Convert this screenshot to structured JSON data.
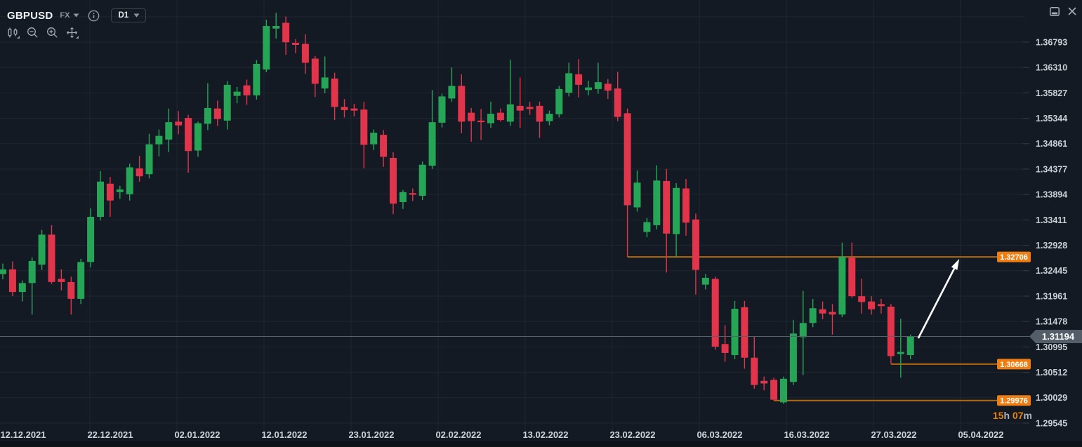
{
  "header": {
    "symbol": "GBPUSD",
    "market_badge": "FX",
    "timeframe": "D1"
  },
  "toolbar": {
    "icons": [
      "chart-style-candles",
      "zoom-out",
      "zoom-in",
      "pan-move"
    ]
  },
  "window_controls": {
    "icons": [
      "dock-panel",
      "close"
    ]
  },
  "chart_data": {
    "type": "candlestick",
    "symbol": "GBPUSD",
    "timeframe": "D1",
    "y_axis": {
      "max": 1.36793,
      "min": 1.29545,
      "step": 0.00483,
      "labels": [
        "1.36793",
        "1.36310",
        "1.35827",
        "1.35344",
        "1.34861",
        "1.34377",
        "1.33894",
        "1.33411",
        "1.32928",
        "1.32445",
        "1.31961",
        "1.31478",
        "1.30995",
        "1.30512",
        "1.30029",
        "1.29545"
      ]
    },
    "x_axis": {
      "labels": [
        "12.12.2021",
        "22.12.2021",
        "02.01.2022",
        "12.01.2022",
        "23.01.2022",
        "02.02.2022",
        "13.02.2022",
        "23.02.2022",
        "06.03.2022",
        "16.03.2022",
        "27.03.2022",
        "05.04.2022"
      ]
    },
    "series_ohlc": [
      [
        1.3238,
        1.3258,
        1.3228,
        1.3247
      ],
      [
        1.3247,
        1.3262,
        1.3196,
        1.3204
      ],
      [
        1.3204,
        1.3226,
        1.3186,
        1.3221
      ],
      [
        1.3221,
        1.327,
        1.3161,
        1.3263
      ],
      [
        1.3256,
        1.3322,
        1.3246,
        1.3313
      ],
      [
        1.3313,
        1.3331,
        1.3219,
        1.3223
      ],
      [
        1.3229,
        1.3247,
        1.3207,
        1.3223
      ],
      [
        1.3223,
        1.3233,
        1.3161,
        1.3191
      ],
      [
        1.3191,
        1.3267,
        1.3181,
        1.3261
      ],
      [
        1.3261,
        1.3363,
        1.3251,
        1.3347
      ],
      [
        1.3347,
        1.3434,
        1.334,
        1.3414
      ],
      [
        1.341,
        1.3423,
        1.3347,
        1.3378
      ],
      [
        1.3394,
        1.3406,
        1.3381,
        1.3399
      ],
      [
        1.339,
        1.3448,
        1.3378,
        1.3441
      ],
      [
        1.3439,
        1.3463,
        1.3414,
        1.3424
      ],
      [
        1.3428,
        1.3505,
        1.342,
        1.3485
      ],
      [
        1.3485,
        1.3513,
        1.3462,
        1.3501
      ],
      [
        1.3494,
        1.3553,
        1.347,
        1.3527
      ],
      [
        1.3528,
        1.3548,
        1.3504,
        1.3521
      ],
      [
        1.3535,
        1.3541,
        1.3431,
        1.3472
      ],
      [
        1.3473,
        1.3528,
        1.3461,
        1.3525
      ],
      [
        1.3524,
        1.3601,
        1.3512,
        1.3554
      ],
      [
        1.3553,
        1.3568,
        1.352,
        1.3533
      ],
      [
        1.353,
        1.3605,
        1.3513,
        1.3598
      ],
      [
        1.3577,
        1.3594,
        1.3563,
        1.3585
      ],
      [
        1.3597,
        1.3608,
        1.356,
        1.3578
      ],
      [
        1.3578,
        1.3645,
        1.357,
        1.3638
      ],
      [
        1.3627,
        1.3722,
        1.3622,
        1.371
      ],
      [
        1.3705,
        1.3735,
        1.3686,
        1.371
      ],
      [
        1.3716,
        1.3728,
        1.3655,
        1.3679
      ],
      [
        1.3678,
        1.3685,
        1.3658,
        1.3674
      ],
      [
        1.3676,
        1.3694,
        1.3619,
        1.364
      ],
      [
        1.3648,
        1.3653,
        1.3575,
        1.36
      ],
      [
        1.3591,
        1.3652,
        1.3582,
        1.3612
      ],
      [
        1.361,
        1.3621,
        1.3531,
        1.3556
      ],
      [
        1.3556,
        1.3571,
        1.3536,
        1.355
      ],
      [
        1.3553,
        1.3562,
        1.3538,
        1.3549
      ],
      [
        1.3551,
        1.3566,
        1.3439,
        1.3484
      ],
      [
        1.3485,
        1.3513,
        1.3474,
        1.3507
      ],
      [
        1.3503,
        1.3512,
        1.3442,
        1.3461
      ],
      [
        1.3459,
        1.347,
        1.3352,
        1.3372
      ],
      [
        1.3375,
        1.3398,
        1.3362,
        1.3394
      ],
      [
        1.3392,
        1.3401,
        1.3377,
        1.3389
      ],
      [
        1.3387,
        1.3452,
        1.3379,
        1.3446
      ],
      [
        1.3444,
        1.3588,
        1.3438,
        1.3527
      ],
      [
        1.3526,
        1.3581,
        1.3517,
        1.3576
      ],
      [
        1.3572,
        1.3631,
        1.3566,
        1.3596
      ],
      [
        1.3596,
        1.3618,
        1.3506,
        1.3528
      ],
      [
        1.3545,
        1.3554,
        1.349,
        1.3529
      ],
      [
        1.353,
        1.3552,
        1.3493,
        1.3527
      ],
      [
        1.3525,
        1.3566,
        1.3516,
        1.3543
      ],
      [
        1.3545,
        1.3553,
        1.3528,
        1.3531
      ],
      [
        1.3528,
        1.3646,
        1.352,
        1.3561
      ],
      [
        1.3558,
        1.3612,
        1.3516,
        1.3549
      ],
      [
        1.3556,
        1.3566,
        1.3541,
        1.3552
      ],
      [
        1.3558,
        1.3566,
        1.3497,
        1.3528
      ],
      [
        1.3529,
        1.3549,
        1.3521,
        1.3543
      ],
      [
        1.3542,
        1.3596,
        1.3536,
        1.359
      ],
      [
        1.3583,
        1.364,
        1.3576,
        1.362
      ],
      [
        1.3618,
        1.3647,
        1.3574,
        1.3598
      ],
      [
        1.3588,
        1.3606,
        1.3578,
        1.3593
      ],
      [
        1.359,
        1.364,
        1.3581,
        1.3603
      ],
      [
        1.36,
        1.3609,
        1.3571,
        1.3587
      ],
      [
        1.3591,
        1.3623,
        1.3529,
        1.3537
      ],
      [
        1.3544,
        1.3553,
        1.32706,
        1.3369
      ],
      [
        1.3365,
        1.3435,
        1.3357,
        1.3412
      ],
      [
        1.3318,
        1.3345,
        1.3308,
        1.3337
      ],
      [
        1.3331,
        1.3445,
        1.3323,
        1.3416
      ],
      [
        1.3415,
        1.3438,
        1.3241,
        1.3315
      ],
      [
        1.3314,
        1.3411,
        1.32706,
        1.3402
      ],
      [
        1.3401,
        1.3419,
        1.3311,
        1.3336
      ],
      [
        1.3342,
        1.3353,
        1.3199,
        1.3246
      ],
      [
        1.3218,
        1.3238,
        1.3209,
        1.3231
      ],
      [
        1.3229,
        1.3233,
        1.3094,
        1.31
      ],
      [
        1.3105,
        1.3141,
        1.3071,
        1.3088
      ],
      [
        1.3084,
        1.3187,
        1.3076,
        1.3172
      ],
      [
        1.3175,
        1.3187,
        1.3058,
        1.3079
      ],
      [
        1.3079,
        1.3119,
        1.302,
        1.3027
      ],
      [
        1.3035,
        1.3043,
        1.3017,
        1.303
      ],
      [
        1.3037,
        1.3041,
        1.29976,
        1.2999
      ],
      [
        1.2994,
        1.3043,
        1.2991,
        1.3039
      ],
      [
        1.3033,
        1.3151,
        1.3027,
        1.3125
      ],
      [
        1.3118,
        1.3206,
        1.3046,
        1.3145
      ],
      [
        1.3145,
        1.3191,
        1.3137,
        1.3173
      ],
      [
        1.3171,
        1.3186,
        1.3152,
        1.3163
      ],
      [
        1.3166,
        1.3181,
        1.3123,
        1.3161
      ],
      [
        1.3161,
        1.3298,
        1.3156,
        1.3271
      ],
      [
        1.3269,
        1.3298,
        1.3193,
        1.3196
      ],
      [
        1.3196,
        1.3229,
        1.3163,
        1.3185
      ],
      [
        1.3186,
        1.3196,
        1.3161,
        1.3171
      ],
      [
        1.3181,
        1.3191,
        1.3163,
        1.3177
      ],
      [
        1.3176,
        1.3181,
        1.30668,
        1.3082
      ],
      [
        1.3086,
        1.3153,
        1.3041,
        1.309
      ],
      [
        1.3084,
        1.3123,
        1.3076,
        1.31194
      ]
    ],
    "levels": [
      {
        "label": "1.32706",
        "value": 1.32706,
        "start_index": 64
      },
      {
        "label": "1.30668",
        "value": 1.30668,
        "start_index": 91
      },
      {
        "label": "1.29976",
        "value": 1.29976,
        "start_index": 79
      }
    ],
    "current_price": {
      "label": "1.31194",
      "value": 1.31194
    },
    "countdown": "15h 07m",
    "annotations": [
      {
        "type": "arrow",
        "from_index": 93.8,
        "from_price": 1.3116,
        "to_index": 98.0,
        "to_price": 1.3267
      }
    ],
    "colors": {
      "background": "#141a23",
      "grid": "#1e2631",
      "up": "#27a556",
      "down": "#e0354b",
      "level_line": "#b4690f",
      "level_label_bg": "#ee7d13",
      "current_line": "#56616c",
      "current_badge_bg": "#535e69",
      "axis_text": "#c9d0d6",
      "date_text": "#ccd3d9",
      "countdown_digit": "#e8830f",
      "countdown_unit": "#aab2ba",
      "arrow": "#ffffff"
    },
    "legend_position": "none",
    "grid": true
  }
}
